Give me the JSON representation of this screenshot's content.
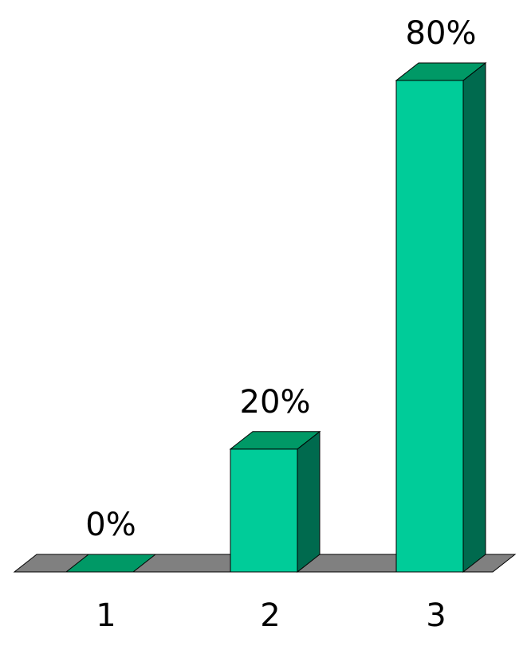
{
  "chart_data": {
    "type": "bar",
    "categories": [
      "1",
      "2",
      "3"
    ],
    "values": [
      0,
      20,
      80
    ],
    "data_labels": [
      "0%",
      "20%",
      "80%"
    ],
    "ylim": [
      0,
      80
    ],
    "grid": false,
    "legend": "none",
    "colors": {
      "bar_front": "#00CC99",
      "bar_top": "#009966",
      "bar_side": "#006A4E",
      "floor": "#808080",
      "outline": "#000000"
    }
  }
}
